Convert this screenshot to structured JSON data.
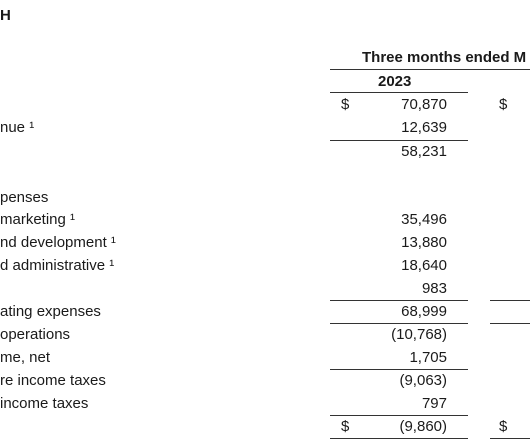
{
  "header": {
    "top_mark": "H",
    "period": "Three months ended M",
    "year": "2023"
  },
  "currency": "$",
  "rows": [
    {
      "label": "",
      "value": "70,870"
    },
    {
      "label": "nue ¹",
      "value": "12,639"
    },
    {
      "label": "",
      "value": "58,231"
    },
    {
      "label": "penses",
      "value": ""
    },
    {
      "label": "marketing ¹",
      "value": "35,496"
    },
    {
      "label": "nd development ¹",
      "value": "13,880"
    },
    {
      "label": "d administrative ¹",
      "value": "18,640"
    },
    {
      "label": "",
      "value": "983"
    },
    {
      "label": "ating expenses",
      "value": "68,999"
    },
    {
      "label": "operations",
      "value": "(10,768)"
    },
    {
      "label": "me, net",
      "value": "1,705"
    },
    {
      "label": "re income taxes",
      "value": "(9,063)"
    },
    {
      "label": "income taxes",
      "value": "797"
    },
    {
      "label": "",
      "value": "(9,860)"
    }
  ]
}
